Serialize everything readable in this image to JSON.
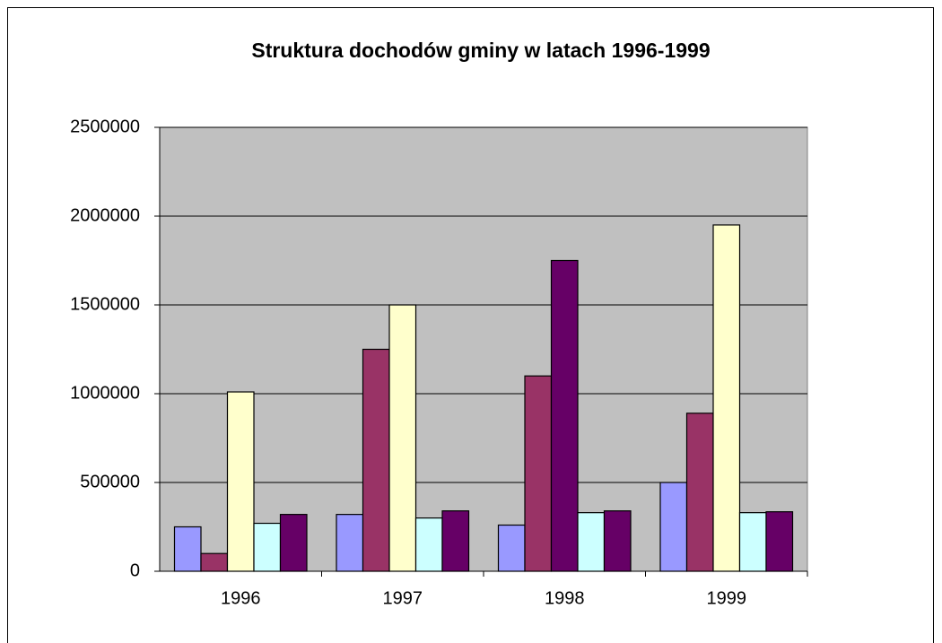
{
  "chart_data": {
    "type": "bar",
    "title": "Struktura dochodów gminy w latach 1996-1999",
    "categories": [
      "1996",
      "1997",
      "1998",
      "1999"
    ],
    "series": [
      {
        "color": "#9999ff",
        "values": [
          250000,
          320000,
          260000,
          500000
        ]
      },
      {
        "color": "#993366",
        "values": [
          100000,
          1250000,
          1100000,
          890000
        ]
      },
      {
        "color": "#ffffcc",
        "values": [
          1010000,
          1500000,
          1750000,
          1950000
        ],
        "point_colors": [
          null,
          null,
          "#660066",
          null
        ]
      },
      {
        "color": "#ccffff",
        "values": [
          270000,
          300000,
          330000,
          330000
        ]
      },
      {
        "color": "#660066",
        "values": [
          320000,
          340000,
          340000,
          335000
        ]
      }
    ],
    "ylim": [
      0,
      2500000
    ],
    "yticks": [
      0,
      500000,
      1000000,
      1500000,
      2000000,
      2500000
    ],
    "grid": true,
    "plot_background": "#c0c0c0"
  }
}
